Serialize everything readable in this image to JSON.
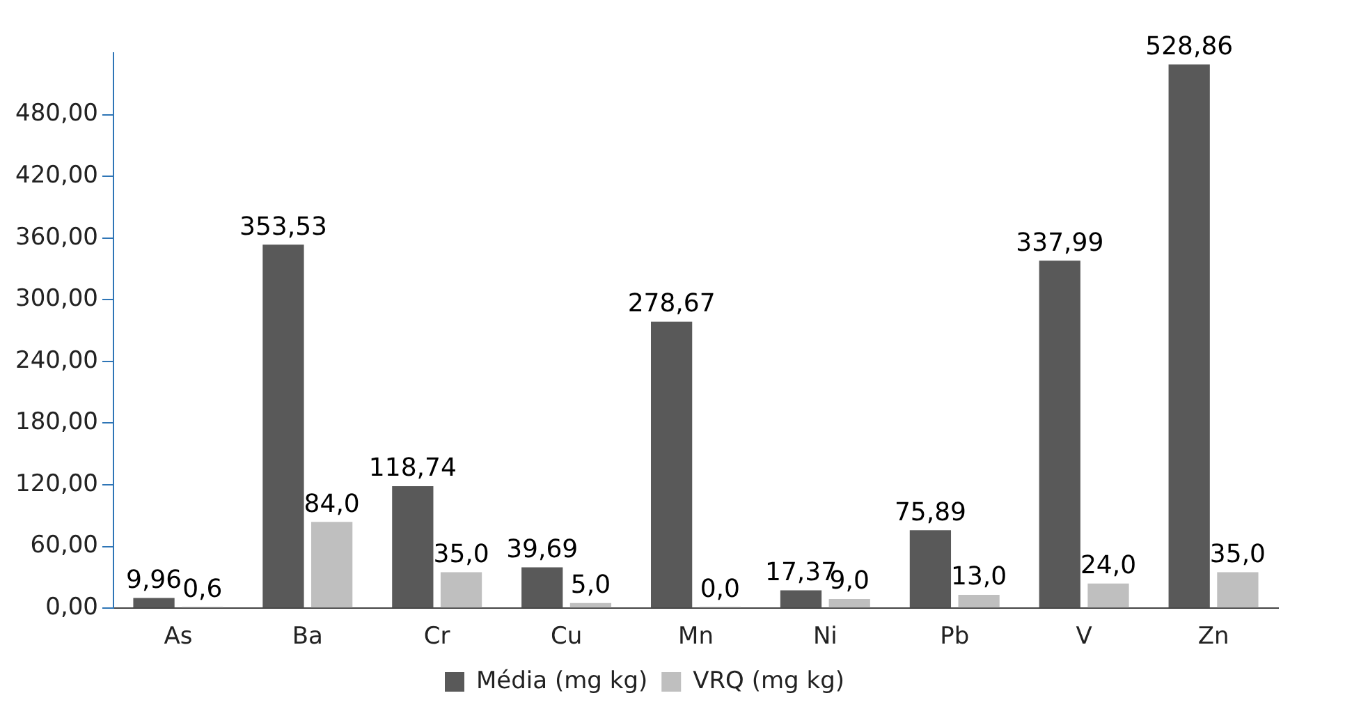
{
  "chart_data": {
    "type": "bar",
    "categories": [
      "As",
      "Ba",
      "Cr",
      "Cu",
      "Mn",
      "Ni",
      "Pb",
      "V",
      "Zn"
    ],
    "series": [
      {
        "name": "Média (mg kg)",
        "color": "#595959",
        "values": [
          9.96,
          353.53,
          118.74,
          39.69,
          278.67,
          17.37,
          75.89,
          337.99,
          528.86
        ],
        "value_labels": [
          "9,96",
          "353,53",
          "118,74",
          "39,69",
          "278,67",
          "17,37",
          "75,89",
          "337,99",
          "528,86"
        ]
      },
      {
        "name": "VRQ (mg kg)",
        "color": "#bfbfbf",
        "values": [
          0.6,
          84.0,
          35.0,
          5.0,
          0.0,
          9.0,
          13.0,
          24.0,
          35.0
        ],
        "value_labels": [
          "0,6",
          "84,0",
          "35,0",
          "5,0",
          "0,0",
          "9,0",
          "13,0",
          "24,0",
          "35,0"
        ]
      }
    ],
    "ylim": [
      0,
      540
    ],
    "yticks": [
      {
        "value": 0,
        "label": "0,00"
      },
      {
        "value": 60,
        "label": "60,00"
      },
      {
        "value": 120,
        "label": "120,00"
      },
      {
        "value": 180,
        "label": "180,00"
      },
      {
        "value": 240,
        "label": "240,00"
      },
      {
        "value": 300,
        "label": "300,00"
      },
      {
        "value": 360,
        "label": "360,00"
      },
      {
        "value": 420,
        "label": "420,00"
      },
      {
        "value": 480,
        "label": "480,00"
      }
    ],
    "grid": false,
    "legend": "bottom"
  }
}
